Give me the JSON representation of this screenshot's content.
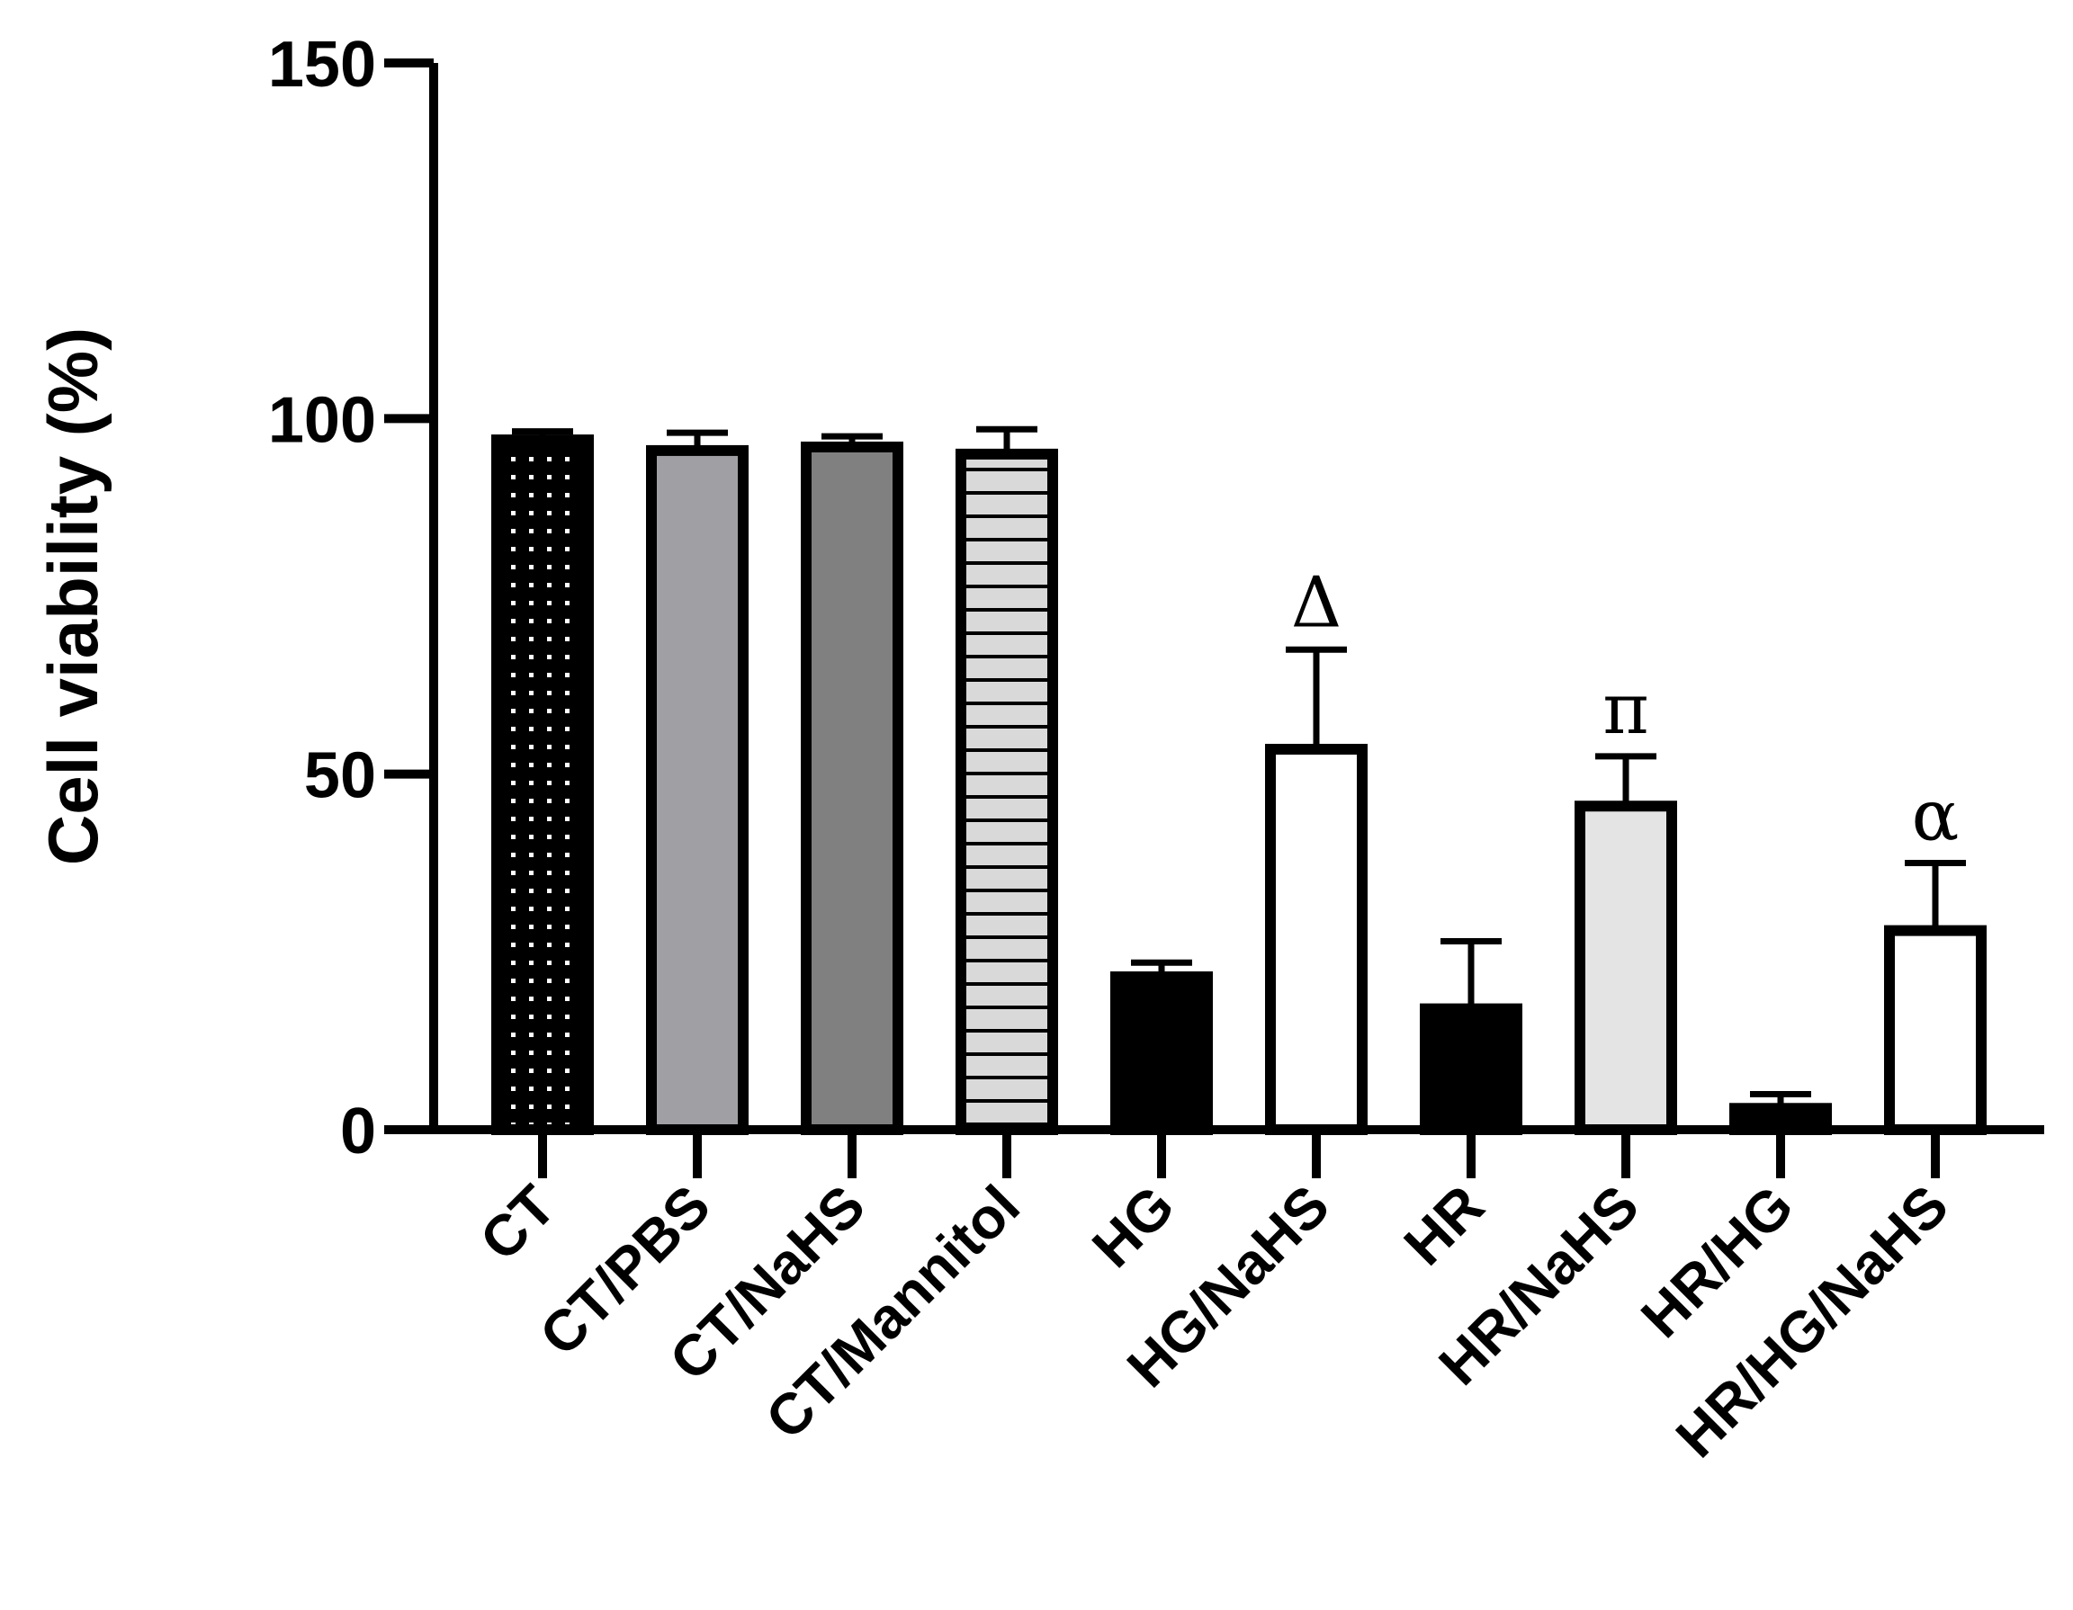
{
  "chart_data": {
    "type": "bar",
    "ylabel": "Cell viability (%)",
    "xlabel": "",
    "ylim": [
      0,
      150
    ],
    "yticks": [
      0,
      50,
      100,
      150
    ],
    "grid": false,
    "legend": "none",
    "categories": [
      "CT",
      "CT/PBS",
      "CT/NaHS",
      "CT/Mannitol",
      "HG",
      "HG/NaHS",
      "HR",
      "HR/NaHS",
      "HR/HG",
      "HR/HG/NaHS"
    ],
    "values": [
      97,
      95.5,
      96,
      95,
      21.5,
      53.5,
      17,
      45.5,
      3,
      28
    ],
    "error": [
      1.2,
      2.5,
      1.5,
      3.5,
      2,
      14,
      9.5,
      7,
      2,
      9.5
    ],
    "fills": [
      "dots",
      "#a0a0a4",
      "#808080",
      "hlines",
      "#000000",
      "#ffffff",
      "#000000",
      "#e4e4e4",
      "#000000",
      "#ffffff"
    ],
    "annotations": [
      "",
      "",
      "",
      "",
      "",
      "Δ",
      "",
      "π",
      "",
      "α"
    ]
  }
}
